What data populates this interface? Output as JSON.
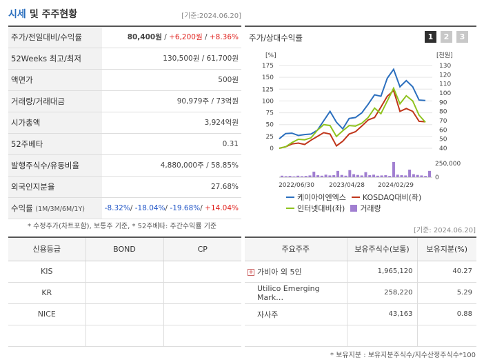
{
  "header": {
    "title_accent": "시세",
    "title_rest": "및 주주현황",
    "date": "[기준:2024.06.20]"
  },
  "price_rows": [
    {
      "label": "주가/전일대비/수익률",
      "price": "80,400원",
      "sep1": " / ",
      "change": "+6,200원",
      "sep2": " / ",
      "rate": "+8.36%"
    },
    {
      "label": "52Weeks 최고/최저",
      "value": "130,500원 / 61,700원"
    },
    {
      "label": "액면가",
      "value": "500원"
    },
    {
      "label": "거래량/거래대금",
      "value": "90,979주 / 73억원"
    },
    {
      "label": "시가총액",
      "value": "3,924억원"
    },
    {
      "label": "52주베타",
      "value": "0.31"
    },
    {
      "label": "발행주식수/유동비율",
      "value": "4,880,000주 / 58.85%"
    },
    {
      "label": "외국인지분율",
      "value": "27.68%"
    },
    {
      "label": "수익률",
      "label_sub": "(1M/3M/6M/1Y)",
      "r1": "-8.32%",
      "r2": "-18.04%",
      "r3": "-19.68%",
      "r4": "+14.04%"
    }
  ],
  "note1": "* 수정주가(차트포함), 보통주 기준, * 52주베타: 주간수익률 기준",
  "chart": {
    "title": "주가/상대수익률",
    "tabs": [
      "1",
      "2",
      "3"
    ],
    "left_unit": "[%]",
    "right_unit": "[천원]",
    "volume_unit_tick": "250,000",
    "volume_zero": "0",
    "legend": {
      "s1": "케이아이엔엑스",
      "s2": "KOSDAQ대비(좌)",
      "s3": "인터넷대비(좌)",
      "s4": "거래량"
    },
    "colors": {
      "s1": "#2b6fbe",
      "s2": "#c0361b",
      "s3": "#8fc31f",
      "vol": "#a17fd1"
    }
  },
  "chart_data": {
    "type": "line",
    "x_ticks": [
      "2022/06/30",
      "2023/04/28",
      "2024/02/29"
    ],
    "left_axis": {
      "ticks": [
        0,
        25,
        50,
        75,
        100,
        125,
        150,
        175
      ],
      "ylim": [
        0,
        175
      ]
    },
    "right_axis": {
      "ticks": [
        40,
        50,
        60,
        70,
        80,
        90,
        100,
        110,
        120,
        130
      ],
      "ylim": [
        40,
        130
      ]
    },
    "series": [
      {
        "name": "케이아이엔엑스",
        "values": [
          20,
          31,
          32,
          27,
          29,
          30,
          38,
          58,
          78,
          55,
          41,
          63,
          65,
          75,
          93,
          113,
          110,
          148,
          167,
          130,
          143,
          130,
          102,
          101
        ]
      },
      {
        "name": "KOSDAQ대비(좌)",
        "values": [
          0,
          3,
          9,
          11,
          8,
          17,
          25,
          33,
          30,
          5,
          15,
          30,
          35,
          47,
          60,
          65,
          87,
          110,
          122,
          78,
          84,
          78,
          57,
          56
        ]
      },
      {
        "name": "인터넷대비(좌)",
        "values": [
          0,
          3,
          12,
          19,
          18,
          22,
          38,
          50,
          48,
          25,
          37,
          48,
          47,
          53,
          65,
          85,
          73,
          100,
          127,
          94,
          111,
          100,
          70,
          55
        ]
      }
    ],
    "volume": [
      6,
      4,
      5,
      3,
      6,
      4,
      5,
      7,
      22,
      8,
      6,
      10,
      7,
      8,
      25,
      9,
      6,
      28,
      12,
      9,
      7,
      20,
      8,
      10,
      6,
      7,
      8,
      5,
      60,
      10,
      8,
      7,
      30,
      12,
      9,
      7,
      5,
      25
    ],
    "volume_max": 250000
  },
  "date2": "[기준: 2024.06.20]",
  "credit": {
    "headers": [
      "신용등급",
      "BOND",
      "CP"
    ],
    "rows": [
      [
        "KIS",
        "",
        ""
      ],
      [
        "KR",
        "",
        ""
      ],
      [
        "NICE",
        "",
        ""
      ],
      [
        "",
        "",
        ""
      ]
    ]
  },
  "holders": {
    "headers": [
      "주요주주",
      "보유주식수(보통)",
      "보유지분(%)"
    ],
    "rows": [
      {
        "name": "가비아 외 5인",
        "shares": "1,965,120",
        "pct": "40.27"
      },
      {
        "name": "Utilico Emerging Mark…",
        "shares": "258,220",
        "pct": "5.29"
      },
      {
        "name": "자사주",
        "shares": "43,163",
        "pct": "0.88"
      }
    ]
  },
  "note2": "* 보유지분 : 보유지분주식수/지수산정주식수*100"
}
